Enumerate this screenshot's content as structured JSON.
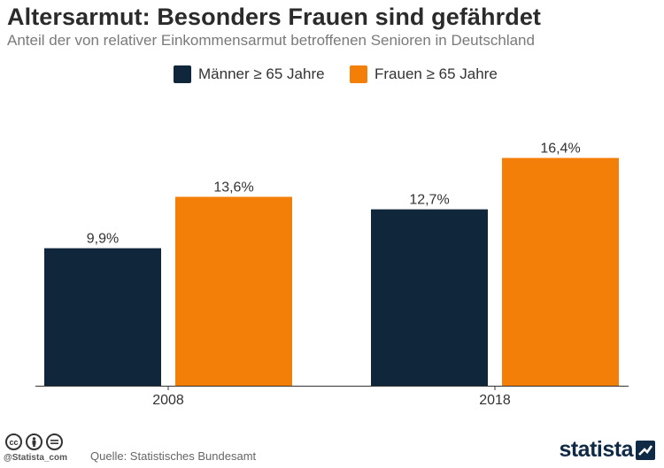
{
  "header": {
    "title": "Altersarmut: Besonders Frauen sind gefährdet",
    "subtitle": "Anteil der von relativer Einkommensarmut betroffenen Senioren in Deutschland"
  },
  "legend": [
    {
      "label": "Männer ≥ 65 Jahre",
      "color": "#10263b"
    },
    {
      "label": "Frauen ≥ 65 Jahre",
      "color": "#f47f08"
    }
  ],
  "chart_data": {
    "type": "bar",
    "title": "Altersarmut: Besonders Frauen sind gefährdet",
    "subtitle": "Anteil der von relativer Einkommensarmut betroffenen Senioren in Deutschland",
    "categories": [
      "2008",
      "2018"
    ],
    "series": [
      {
        "name": "Männer ≥ 65 Jahre",
        "values": [
          9.9,
          12.7
        ],
        "labels": [
          "9,9%",
          "12,7%"
        ],
        "color": "#10263b"
      },
      {
        "name": "Frauen ≥ 65 Jahre",
        "values": [
          13.6,
          16.4
        ],
        "labels": [
          "13,6%",
          "16,4%"
        ],
        "color": "#f47f08"
      }
    ],
    "xlabel": "",
    "ylabel": "",
    "ylim": [
      0,
      18
    ],
    "grid": false,
    "legend_position": "top"
  },
  "footer": {
    "handle": "@Statista_com",
    "source": "Quelle: Statistisches Bundesamt",
    "logo_text": "statista",
    "cc_icons": [
      "cc-icon",
      "by-icon",
      "nd-icon"
    ]
  }
}
